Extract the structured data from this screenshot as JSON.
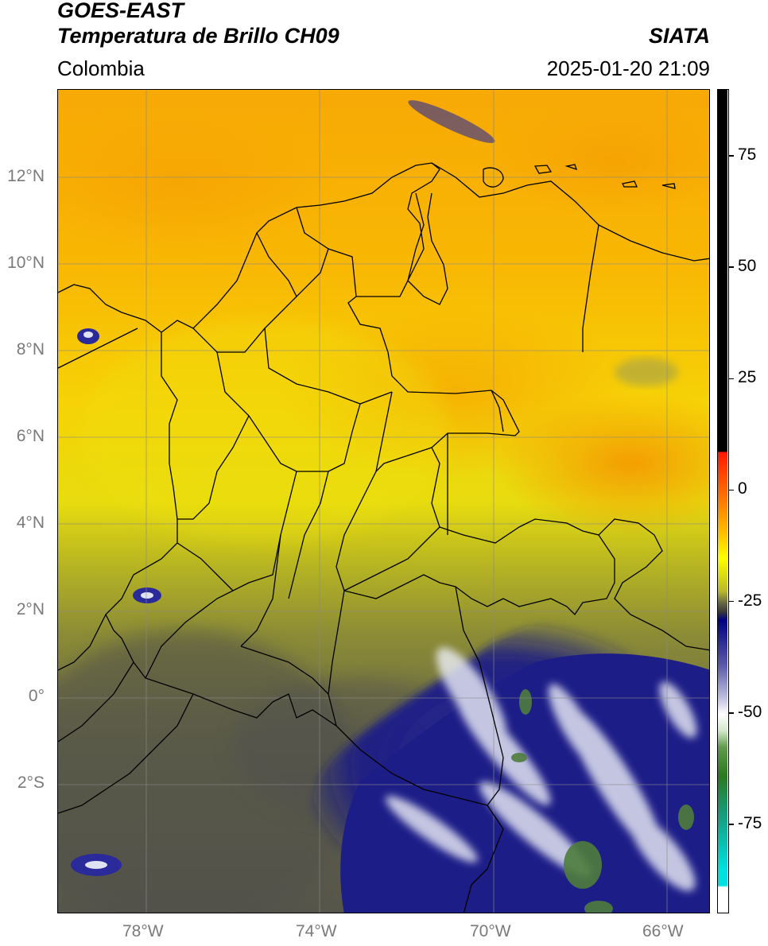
{
  "header": {
    "title_line1": "GOES-EAST",
    "title_line2": "Temperatura de Brillo CH09",
    "brand": "SIATA",
    "region": "Colombia",
    "datetime": "2025-01-20 21:09"
  },
  "map": {
    "extent": {
      "lon": [
        -80,
        -65
      ],
      "lat": [
        -5,
        14
      ]
    },
    "lon_ticks": [
      "78°W",
      "74°W",
      "70°W",
      "66°W"
    ],
    "lat_ticks": [
      "12°N",
      "10°N",
      "8°N",
      "6°N",
      "4°N",
      "2°N",
      "0°",
      "2°S"
    ],
    "lon_tick_values": [
      -78,
      -74,
      -70,
      -66
    ],
    "lat_tick_values": [
      12,
      10,
      8,
      6,
      4,
      2,
      0,
      -2
    ]
  },
  "colorbar": {
    "range": [
      -95,
      90
    ],
    "tick_labels": [
      "75",
      "50",
      "25",
      "0",
      "-25",
      "-50",
      "-75"
    ],
    "tick_values": [
      75,
      50,
      25,
      0,
      -25,
      -50,
      -75
    ],
    "colors": {
      "black": "#000000",
      "red": "#ff1a00",
      "orange": "#ff9a00",
      "yellow": "#ffff00",
      "olive": "#9d9d2e",
      "grey": "#4f4f4f",
      "navy": "#000080",
      "white": "#ffffff",
      "green": "#2a7a1f",
      "cyan": "#00e0e0"
    }
  },
  "colors": {
    "cloud_free_warm": "#f6b102",
    "yellow": "#f1d70c",
    "olive": "#909034",
    "grey": "#5a5a4a",
    "navy": "#1a1a80",
    "cold_white": "#e8ecf6",
    "coldest_green": "#4a7a3a"
  }
}
